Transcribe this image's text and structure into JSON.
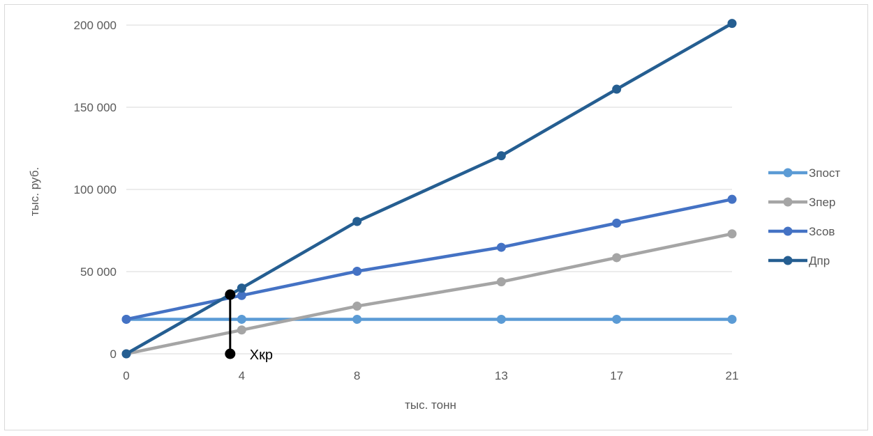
{
  "chart_data": {
    "type": "line",
    "x": [
      0,
      4,
      8,
      13,
      17,
      21
    ],
    "categories": [
      "0",
      "4",
      "8",
      "13",
      "17",
      "21"
    ],
    "xlabel": "тыс. тонн",
    "ylabel": "тыс. руб.",
    "ylim": [
      0,
      200000
    ],
    "yticks": [
      0,
      50000,
      100000,
      150000,
      200000
    ],
    "ytick_labels": [
      "0",
      "50 000",
      "100 000",
      "150 000",
      "200 000"
    ],
    "grid": "horizontal",
    "legend_position": "right",
    "series": [
      {
        "name": "Зпост",
        "color": "#5B9BD5",
        "values": [
          21000,
          21000,
          21000,
          21000,
          21000,
          21000
        ]
      },
      {
        "name": "Зпер",
        "color": "#A5A5A5",
        "values": [
          0,
          14500,
          29000,
          43800,
          58500,
          73000
        ]
      },
      {
        "name": "Зсов",
        "color": "#4472C4",
        "values": [
          21000,
          35500,
          50200,
          64800,
          79500,
          94000
        ]
      },
      {
        "name": "Дпр",
        "color": "#255E91",
        "values": [
          0,
          40000,
          80500,
          120500,
          161000,
          201000
        ]
      }
    ],
    "annotation": {
      "label": "Xкр",
      "x": 3.6,
      "y": 36000,
      "color": "#000000"
    }
  }
}
